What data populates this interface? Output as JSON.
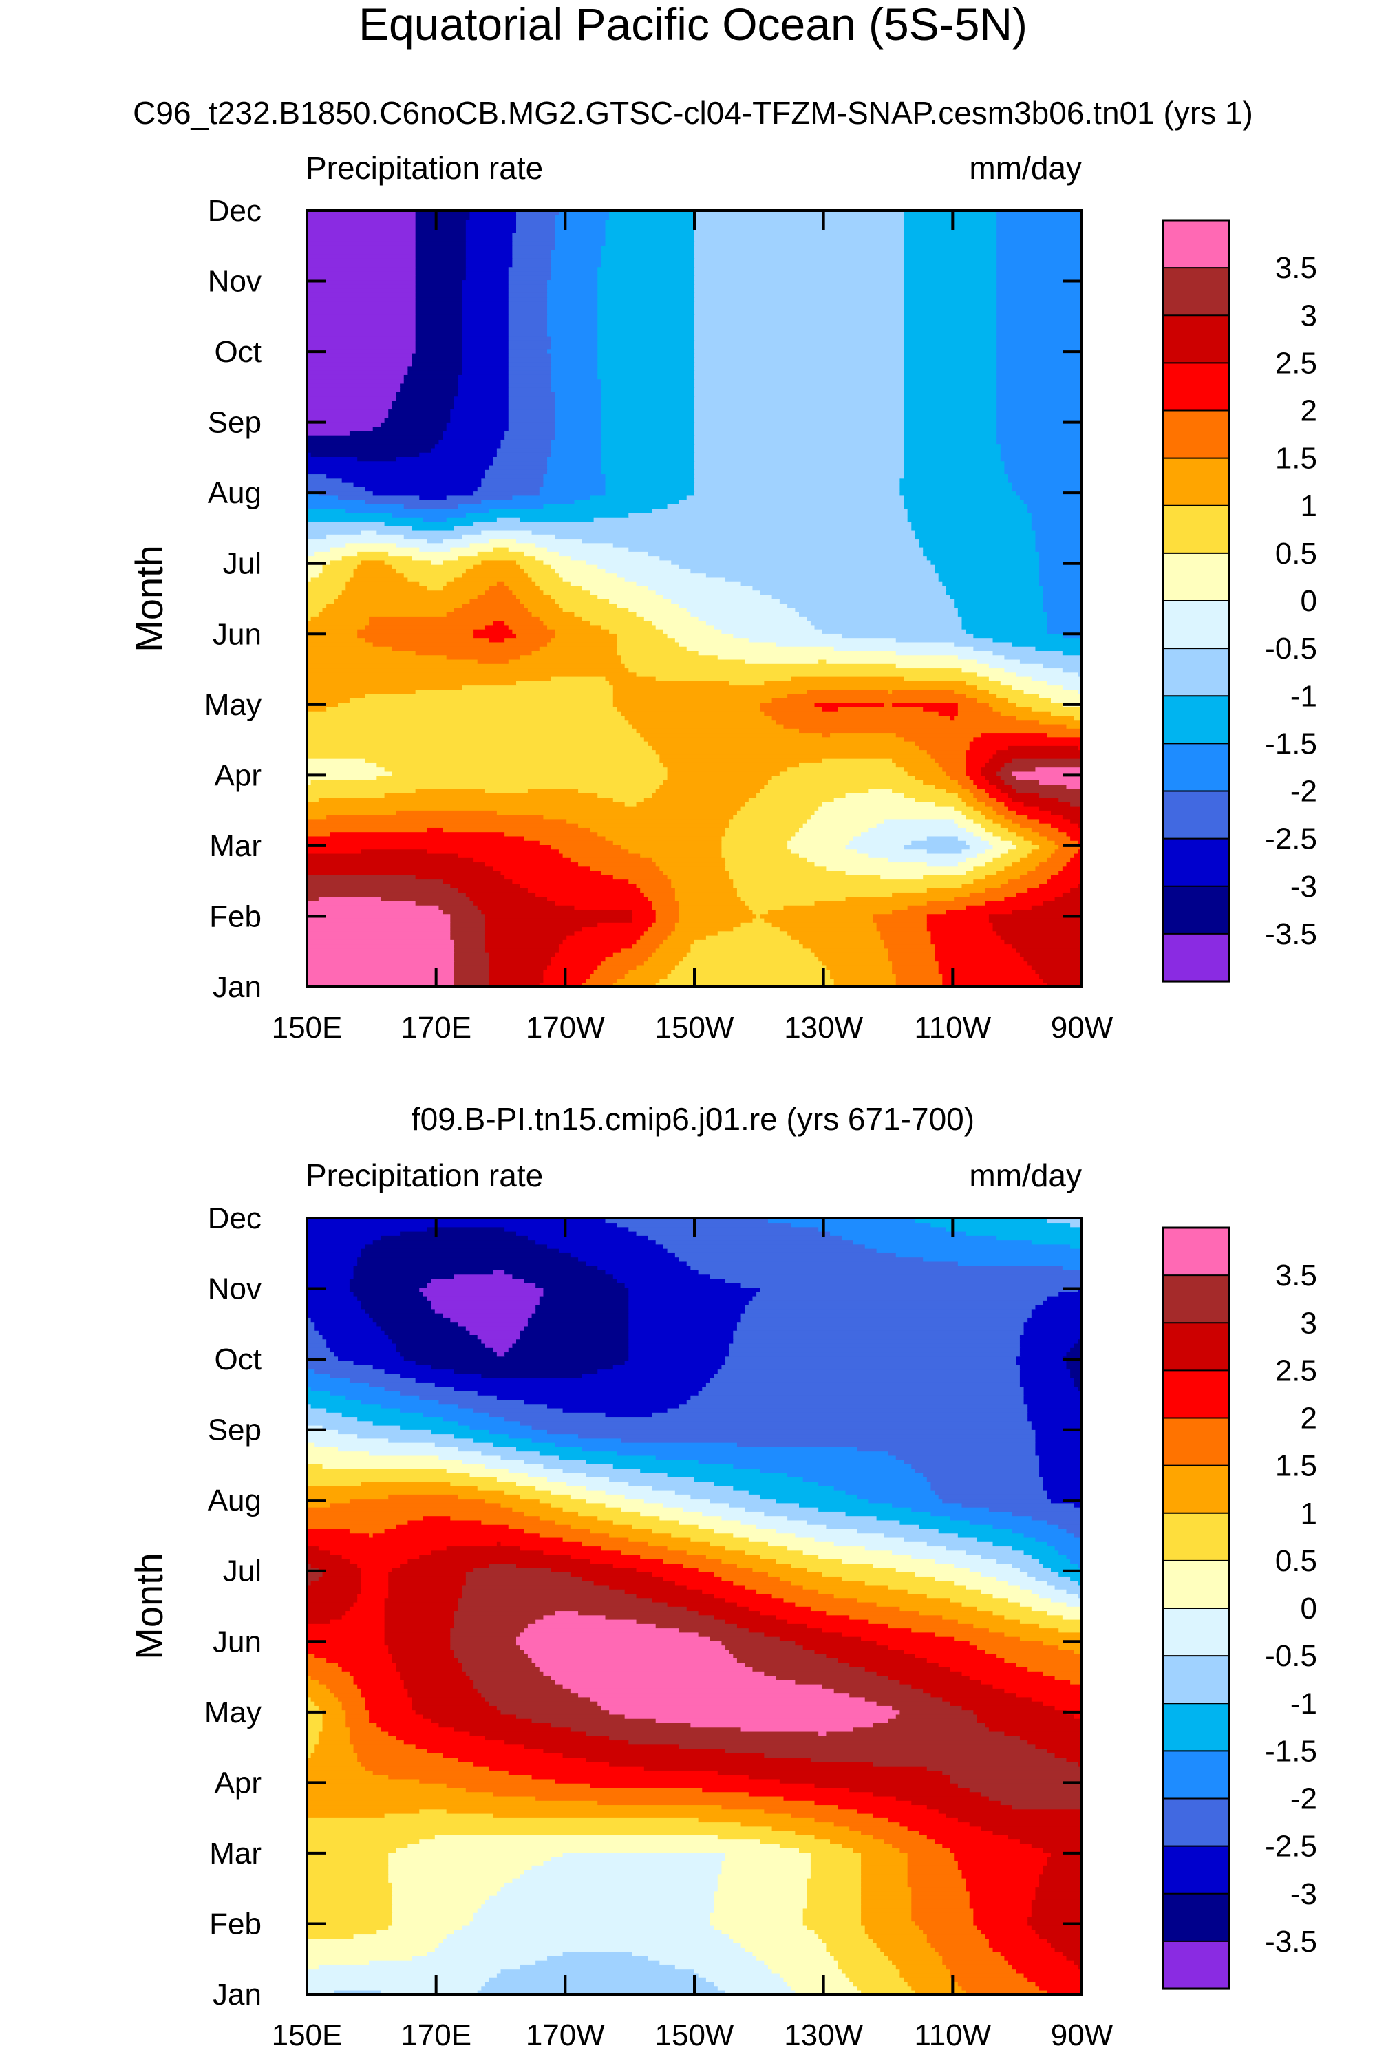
{
  "figure": {
    "title": "Equatorial Pacific Ocean (5S-5N)"
  },
  "chart_data": [
    {
      "type": "heatmap",
      "title": "C96_t232.B1850.C6noCB.MG2.GTSC-cl04-TFZM-SNAP.cesm3b06.tn01 (yrs 1)",
      "left_label": "Precipitation rate",
      "right_label": "mm/day",
      "ylabel": "Month",
      "xlabel": "",
      "x_ticks": [
        "150E",
        "170E",
        "170W",
        "150W",
        "130W",
        "110W",
        "90W"
      ],
      "x_ticks_deg_east": [
        150,
        170,
        190,
        210,
        230,
        250,
        270
      ],
      "y_ticks": [
        "Jan",
        "Feb",
        "Mar",
        "Apr",
        "May",
        "Jun",
        "Jul",
        "Aug",
        "Sep",
        "Oct",
        "Nov",
        "Dec"
      ],
      "x_deg_east": [
        150,
        160,
        170,
        180,
        190,
        200,
        210,
        220,
        230,
        240,
        250,
        260,
        270
      ],
      "values": [
        [
          3.9,
          3.9,
          3.8,
          2.8,
          2.3,
          1.2,
          0.6,
          0.6,
          0.9,
          1.4,
          2.1,
          2.3,
          2.7
        ],
        [
          3.9,
          3.9,
          3.7,
          2.8,
          2.6,
          2.6,
          1.2,
          1.0,
          1.2,
          1.6,
          2.3,
          2.7,
          3.0
        ],
        [
          2.3,
          2.4,
          2.4,
          2.3,
          1.9,
          1.4,
          1.2,
          0.7,
          0.2,
          -0.4,
          -0.9,
          0.5,
          2.0
        ],
        [
          0.3,
          0.4,
          0.7,
          0.6,
          0.8,
          0.7,
          1.2,
          1.1,
          0.7,
          0.7,
          1.6,
          3.7,
          3.9
        ],
        [
          1.1,
          0.9,
          0.8,
          0.5,
          0.7,
          1.1,
          1.4,
          1.5,
          2.1,
          2.0,
          2.1,
          1.0,
          0.3
        ],
        [
          1.2,
          1.6,
          1.8,
          2.2,
          1.4,
          0.9,
          0.2,
          -0.2,
          -0.5,
          -0.7,
          -0.9,
          -1.4,
          -1.6
        ],
        [
          0.2,
          1.2,
          0.5,
          1.3,
          0.2,
          -0.3,
          -0.6,
          -0.7,
          -0.8,
          -0.8,
          -1.1,
          -1.4,
          -1.7
        ],
        [
          -1.9,
          -2.5,
          -2.8,
          -2.3,
          -1.8,
          -1.3,
          -1.0,
          -0.8,
          -0.8,
          -0.9,
          -1.4,
          -1.5,
          -1.6
        ],
        [
          -3.9,
          -3.6,
          -3.1,
          -2.6,
          -1.9,
          -1.2,
          -1.0,
          -0.8,
          -0.8,
          -0.9,
          -1.3,
          -1.6,
          -2.0
        ],
        [
          -3.9,
          -3.9,
          -3.3,
          -2.6,
          -1.8,
          -1.2,
          -1.0,
          -0.8,
          -0.8,
          -0.9,
          -1.3,
          -1.6,
          -1.8
        ],
        [
          -3.9,
          -3.9,
          -3.3,
          -2.6,
          -1.8,
          -1.2,
          -1.0,
          -0.8,
          -0.8,
          -0.9,
          -1.3,
          -1.6,
          -1.8
        ],
        [
          -3.9,
          -3.9,
          -3.3,
          -2.7,
          -1.9,
          -1.3,
          -1.0,
          -0.8,
          -0.8,
          -0.9,
          -1.3,
          -1.6,
          -1.8
        ]
      ]
    },
    {
      "type": "heatmap",
      "title": "f09.B-PI.tn15.cmip6.j01.re (yrs 671-700)",
      "left_label": "Precipitation rate",
      "right_label": "mm/day",
      "ylabel": "Month",
      "xlabel": "",
      "x_ticks": [
        "150E",
        "170E",
        "170W",
        "150W",
        "130W",
        "110W",
        "90W"
      ],
      "x_ticks_deg_east": [
        150,
        170,
        190,
        210,
        230,
        250,
        270
      ],
      "y_ticks": [
        "Jan",
        "Feb",
        "Mar",
        "Apr",
        "May",
        "Jun",
        "Jul",
        "Aug",
        "Sep",
        "Oct",
        "Nov",
        "Dec"
      ],
      "x_deg_east": [
        150,
        160,
        170,
        180,
        190,
        200,
        210,
        220,
        230,
        240,
        250,
        260,
        270
      ],
      "values": [
        [
          -0.5,
          -0.6,
          -0.2,
          -0.7,
          -0.8,
          -0.8,
          -0.7,
          -0.3,
          0.2,
          0.7,
          1.4,
          1.8,
          2.2
        ],
        [
          0.8,
          0.7,
          0.1,
          -0.1,
          -0.3,
          -0.3,
          -0.1,
          0.3,
          0.6,
          1.3,
          1.8,
          2.4,
          3.0
        ],
        [
          0.8,
          0.6,
          0.2,
          0.1,
          0.0,
          -0.1,
          -0.1,
          0.1,
          0.6,
          1.3,
          2.0,
          2.3,
          2.7
        ],
        [
          1.2,
          1.4,
          1.5,
          1.8,
          2.0,
          2.2,
          2.2,
          2.4,
          2.6,
          2.8,
          3.0,
          3.4,
          3.2
        ],
        [
          0.6,
          2.1,
          2.7,
          3.0,
          3.3,
          3.6,
          3.8,
          3.9,
          3.9,
          3.6,
          3.1,
          2.8,
          2.4
        ],
        [
          2.3,
          2.4,
          2.9,
          3.4,
          3.9,
          3.9,
          3.7,
          3.2,
          2.8,
          2.4,
          2.1,
          1.6,
          1.3
        ],
        [
          3.2,
          2.4,
          2.8,
          3.2,
          3.0,
          2.6,
          2.1,
          1.5,
          0.9,
          0.6,
          0.2,
          -0.4,
          -1.5
        ],
        [
          1.3,
          1.6,
          1.8,
          1.4,
          0.7,
          0.1,
          -0.4,
          -0.9,
          -1.3,
          -1.6,
          -2.1,
          -2.4,
          -2.6
        ],
        [
          -0.3,
          -0.8,
          -1.1,
          -1.7,
          -2.2,
          -2.4,
          -2.4,
          -2.3,
          -2.2,
          -2.2,
          -2.3,
          -2.4,
          -2.8
        ],
        [
          -2.3,
          -2.7,
          -3.3,
          -3.5,
          -3.3,
          -3.0,
          -2.6,
          -2.4,
          -2.4,
          -2.4,
          -2.4,
          -2.5,
          -3.2
        ],
        [
          -2.6,
          -3.2,
          -3.6,
          -3.7,
          -3.4,
          -3.0,
          -2.6,
          -2.5,
          -2.5,
          -2.4,
          -2.4,
          -2.4,
          -2.5
        ],
        [
          -2.9,
          -2.9,
          -2.9,
          -2.9,
          -2.6,
          -2.4,
          -2.2,
          -2.0,
          -1.9,
          -1.6,
          -1.3,
          -1.1,
          -0.8
        ]
      ]
    }
  ],
  "colorbar": {
    "levels": [
      "3.5",
      "3",
      "2.5",
      "2",
      "1.5",
      "1",
      "0.5",
      "0",
      "-0.5",
      "-1",
      "-1.5",
      "-2",
      "-2.5",
      "-3",
      "-3.5"
    ],
    "level_values": [
      3.5,
      3,
      2.5,
      2,
      1.5,
      1,
      0.5,
      0,
      -0.5,
      -1,
      -1.5,
      -2,
      -2.5,
      -3,
      -3.5
    ],
    "colors_top_to_bottom": [
      "#ff69b4",
      "#a52a2a",
      "#cd0000",
      "#ff0000",
      "#ff7300",
      "#ffa500",
      "#fede3c",
      "#ffffbe",
      "#dcf5ff",
      "#a0d2ff",
      "#00b4f0",
      "#1e8cff",
      "#4169e1",
      "#0000cd",
      "#00008b",
      "#8a2be2"
    ]
  }
}
